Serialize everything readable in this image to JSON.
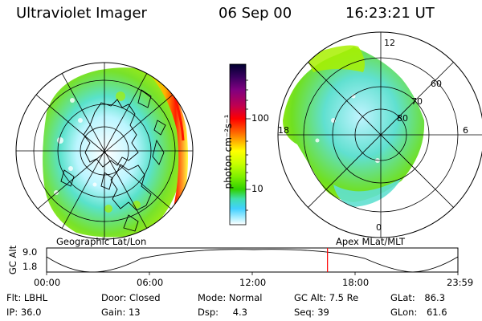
{
  "header": {
    "instrument": "Ultraviolet Imager",
    "date": "06 Sep 00",
    "time": "16:23:21 UT"
  },
  "left_map": {
    "caption": "Geographic Lat/Lon"
  },
  "right_map": {
    "caption": "Apex MLat/MLT",
    "mlt_labels": [
      "12",
      "18",
      "6",
      "0"
    ],
    "mlat_labels": [
      "60",
      "70",
      "80"
    ]
  },
  "colorbar": {
    "unit_label": "photon cm⁻²s⁻¹",
    "tick_labels": [
      "100",
      "10"
    ],
    "colors": [
      "#000030",
      "#3a0060",
      "#800080",
      "#c00050",
      "#ff0000",
      "#ff6000",
      "#ffb000",
      "#ffff00",
      "#c8ff00",
      "#80f000",
      "#30d000",
      "#40e0b0",
      "#40d0ff",
      "#b0f0ff",
      "#ffffff"
    ]
  },
  "altitude_plot": {
    "y_title": "GC Alt",
    "y_ticks": [
      "9.0",
      "1.8"
    ],
    "x_ticks": [
      "00:00",
      "06:00",
      "12:00",
      "18:00",
      "23:59"
    ],
    "current_time_hours": 16.39,
    "marker_color": "#ff0000"
  },
  "status": {
    "row1": [
      {
        "label": "Flt:",
        "value": "LBHL"
      },
      {
        "label": "Door:",
        "value": "Closed"
      },
      {
        "label": "Mode:",
        "value": "Normal"
      },
      {
        "label": "GC Alt:",
        "value": "7.5 Re"
      },
      {
        "label": "GLat:",
        "value": "86.3"
      }
    ],
    "row2": [
      {
        "label": "IP:",
        "value": "36.0"
      },
      {
        "label": "Gain:",
        "value": "13"
      },
      {
        "label": "Dsp:",
        "value": "4.3"
      },
      {
        "label": "Seq:",
        "value": "39"
      },
      {
        "label": "GLon:",
        "value": "61.6"
      }
    ]
  }
}
